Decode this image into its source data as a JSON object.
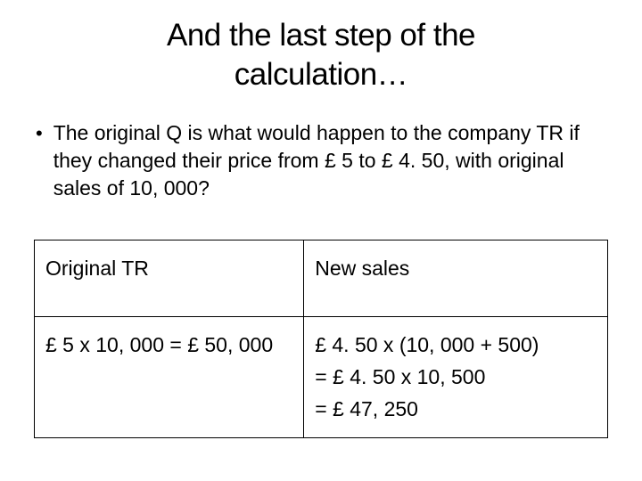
{
  "title_line1": "And the last step of the",
  "title_line2": "calculation…",
  "bullet_text": "The original Q is what would happen to the company TR if they changed their price from £ 5 to £ 4. 50, with original sales of 10, 000?",
  "table": {
    "header_left": "Original TR",
    "header_right": "New sales",
    "cell_left": "£ 5 x 10, 000 = £ 50, 000",
    "cell_right_line1": "£ 4. 50 x (10, 000 + 500)",
    "cell_right_line2": "= £ 4. 50 x 10, 500",
    "cell_right_line3": "= £ 47, 250"
  },
  "styling": {
    "background_color": "#ffffff",
    "text_color": "#000000",
    "border_color": "#000000",
    "title_fontsize": 35,
    "body_fontsize": 23,
    "font_family": "Verdana"
  }
}
